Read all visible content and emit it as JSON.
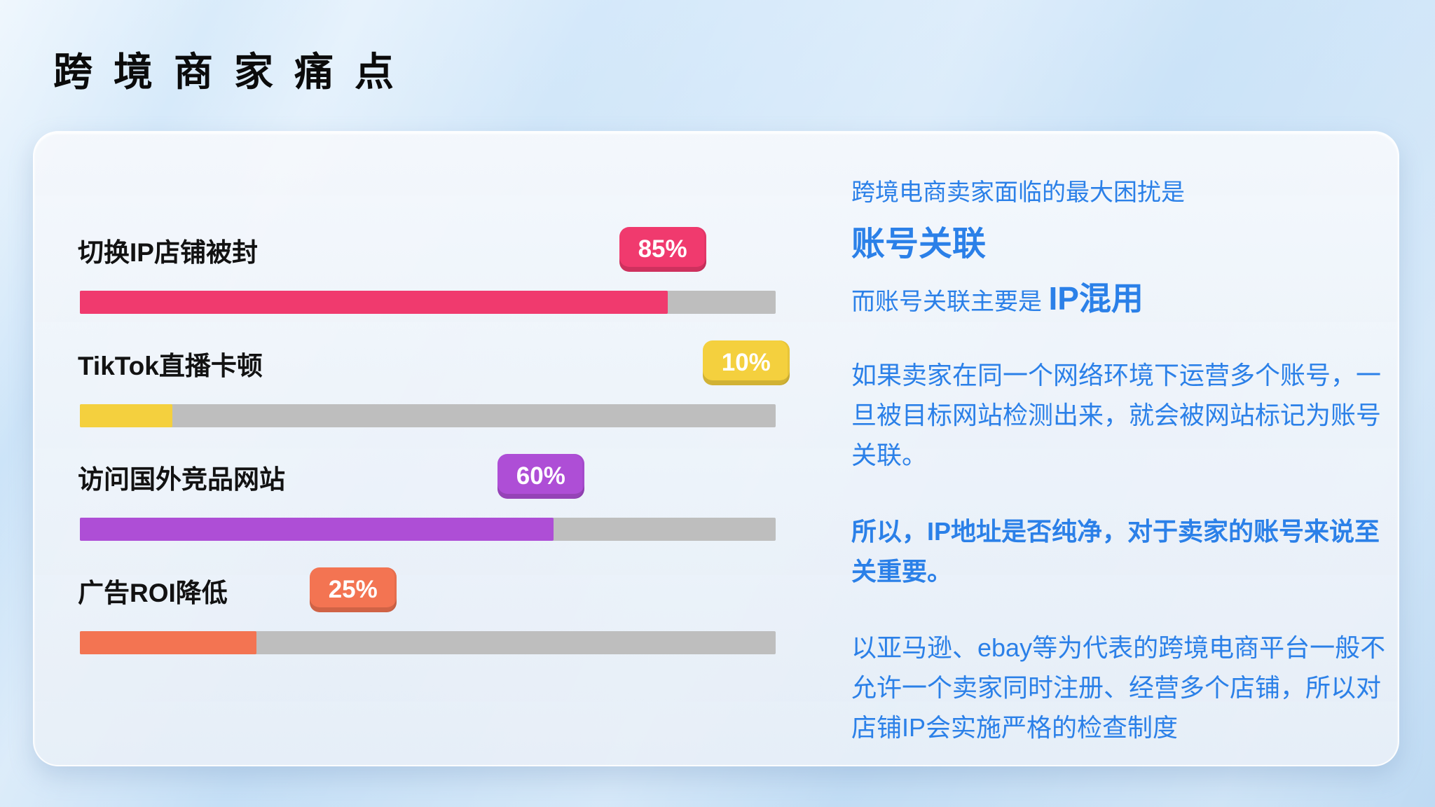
{
  "title": "跨境商家痛点",
  "chart_data": {
    "type": "bar",
    "orientation": "horizontal",
    "title": "跨境商家痛点",
    "categories": [
      "切换IP店铺被封",
      "TikTok直播卡顿",
      "访问国外竞品网站",
      "广告ROI降低"
    ],
    "values": [
      85,
      10,
      60,
      25
    ],
    "value_labels": [
      "85%",
      "10%",
      "60%",
      "25%"
    ],
    "bar_colors": [
      "#f03a6e",
      "#f4d03e",
      "#ae4ed6",
      "#f37452"
    ],
    "track_color": "#bebebe",
    "xlim": [
      0,
      100
    ],
    "grid": false,
    "legend": false,
    "layout_hints": {
      "fill_percents": [
        84.5,
        13.3,
        68.1,
        25.4
      ],
      "badge_left_percents": [
        77.5,
        89.5,
        60.0,
        33.0
      ]
    }
  },
  "panel": {
    "text_color": "#2b80e8",
    "intro": "跨境电商卖家面临的最大困扰是",
    "headline": "账号关联",
    "sub_prefix": "而账号关联主要是",
    "sub_strong": "IP混用",
    "para1": "如果卖家在同一个网络环境下运营多个账号，一旦被目标网站检测出来，就会被网站标记为账号关联。",
    "para2": "所以，IP地址是否纯净，对于卖家的账号来说至关重要。",
    "para3": "以亚马逊、ebay等为代表的跨境电商平台一般不允许一个卖家同时注册、经营多个店铺，所以对店铺IP会实施严格的检查制度"
  }
}
